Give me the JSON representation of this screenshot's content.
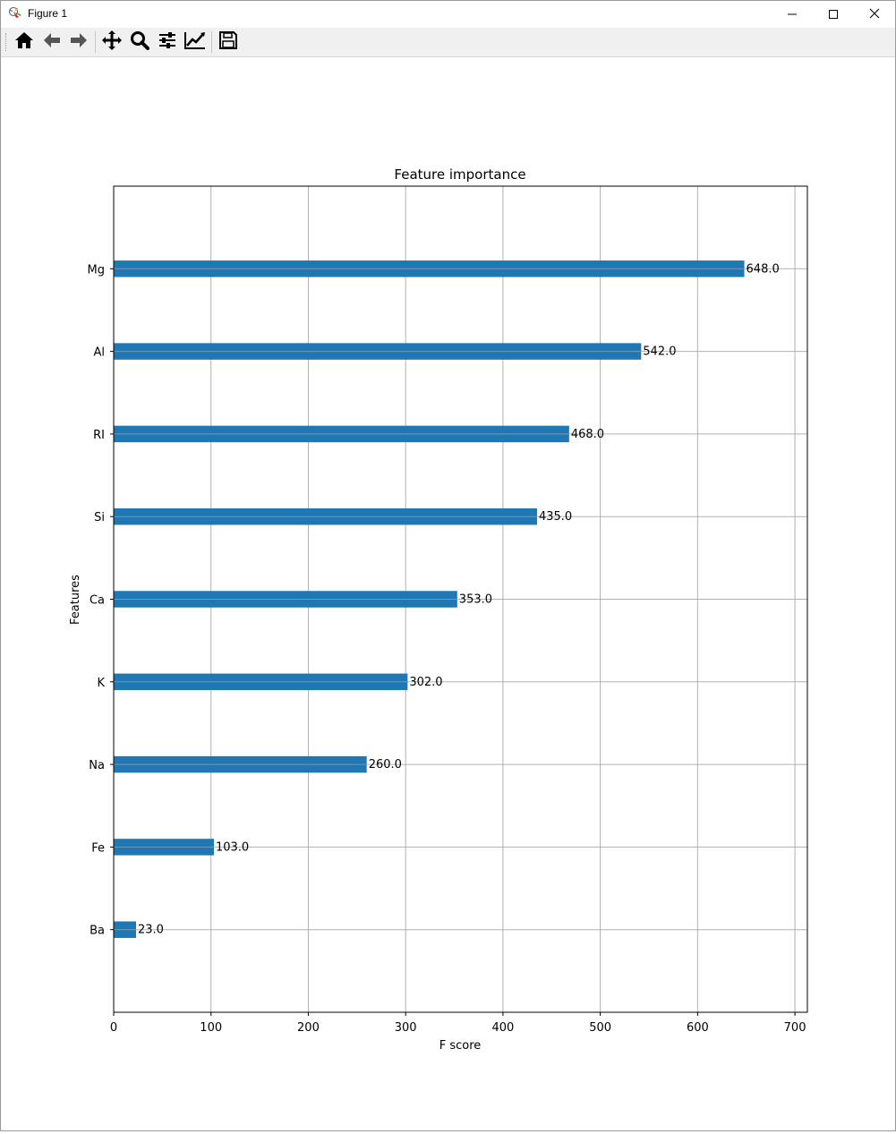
{
  "window": {
    "title": "Figure 1",
    "icons": [
      "matplotlib-icon",
      "minimize-icon",
      "maximize-icon",
      "close-icon"
    ]
  },
  "toolbar": {
    "buttons": [
      {
        "name": "home",
        "icon": "home-icon"
      },
      {
        "name": "back",
        "icon": "arrow-left-icon"
      },
      {
        "name": "forward",
        "icon": "arrow-right-icon"
      },
      {
        "name": "pan",
        "icon": "move-icon"
      },
      {
        "name": "zoom",
        "icon": "magnifier-icon"
      },
      {
        "name": "configure-subplots",
        "icon": "sliders-icon"
      },
      {
        "name": "edit-axis",
        "icon": "line-chart-icon"
      },
      {
        "name": "save",
        "icon": "floppy-disk-icon"
      }
    ]
  },
  "chart_data": {
    "type": "bar",
    "orientation": "horizontal",
    "title": "Feature importance",
    "xlabel": "F score",
    "ylabel": "Features",
    "categories": [
      "Ba",
      "Fe",
      "Na",
      "K",
      "Ca",
      "Si",
      "RI",
      "Al",
      "Mg"
    ],
    "values": [
      23,
      103,
      260,
      302,
      353,
      435,
      468,
      542,
      648
    ],
    "value_labels": [
      "23.0",
      "103.0",
      "260.0",
      "302.0",
      "353.0",
      "435.0",
      "468.0",
      "542.0",
      "648.0"
    ],
    "xlim": [
      0,
      712.8
    ],
    "xticks": [
      0,
      100,
      200,
      300,
      400,
      500,
      600,
      700
    ],
    "xtick_labels": [
      "0",
      "100",
      "200",
      "300",
      "400",
      "500",
      "600",
      "700"
    ],
    "grid": true,
    "bar_color": "#1f77b4",
    "grid_color": "#b0b0b0"
  }
}
